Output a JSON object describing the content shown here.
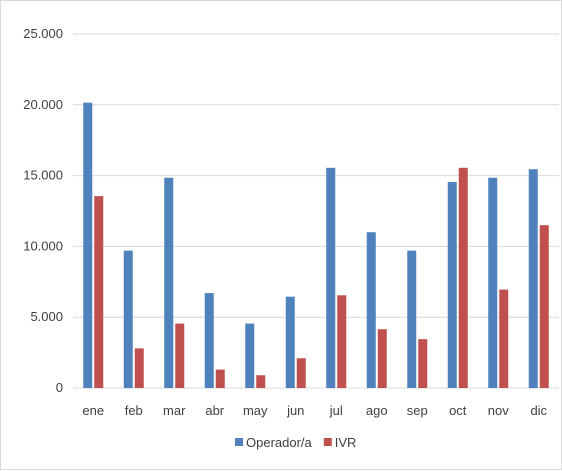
{
  "chart_data": {
    "type": "bar",
    "categories": [
      "ene",
      "feb",
      "mar",
      "abr",
      "may",
      "jun",
      "jul",
      "ago",
      "sep",
      "oct",
      "nov",
      "dic"
    ],
    "series": [
      {
        "name": "Operador/a",
        "color": "#4f81bd",
        "values": [
          20150,
          9700,
          14850,
          6700,
          4550,
          6450,
          15550,
          11000,
          9700,
          14550,
          14850,
          15450
        ]
      },
      {
        "name": "IVR",
        "color": "#c0504d",
        "values": [
          13550,
          2800,
          4550,
          1300,
          900,
          2100,
          6550,
          4150,
          3450,
          15550,
          6950,
          11500
        ]
      }
    ],
    "ylim": [
      0,
      25000
    ],
    "y_ticks": [
      0,
      5000,
      10000,
      15000,
      20000,
      25000
    ],
    "y_tick_labels": [
      "0",
      "5.000",
      "10.000",
      "15.000",
      "20.000",
      "25.000"
    ],
    "grid": "horizontal",
    "legend_position": "bottom",
    "title": "",
    "xlabel": "",
    "ylabel": ""
  }
}
